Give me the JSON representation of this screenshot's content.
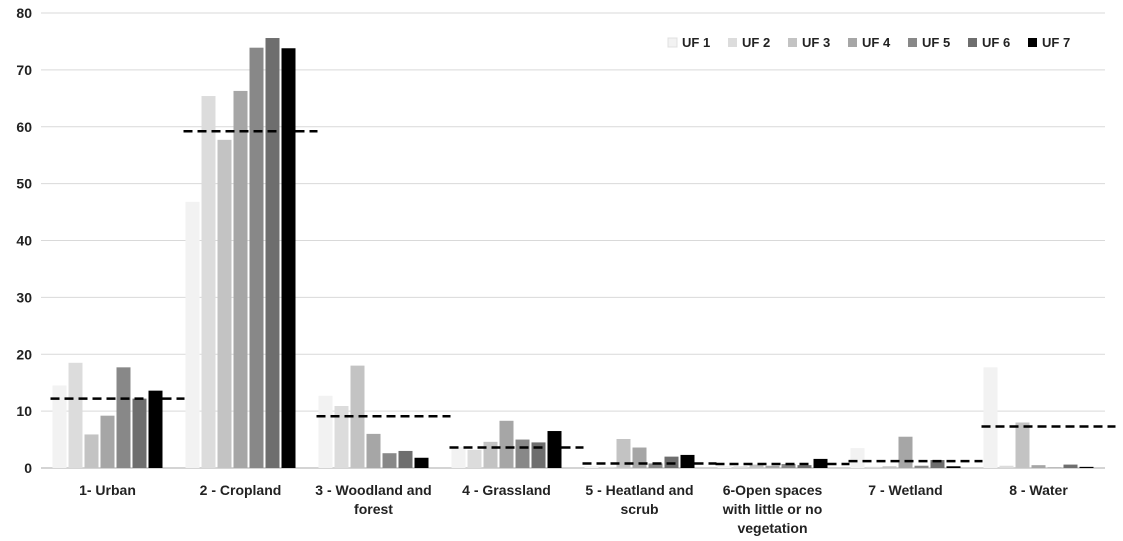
{
  "chart_data": {
    "type": "bar",
    "title": "",
    "xlabel": "",
    "ylabel": "",
    "ylim": [
      0,
      80
    ],
    "yticks": [
      0,
      10,
      20,
      30,
      40,
      50,
      60,
      70,
      80
    ],
    "grid": "horizontal",
    "legend_position": "top-right",
    "categories": [
      [
        "1- Urban"
      ],
      [
        "2 - Cropland"
      ],
      [
        "3 - Woodland and",
        "forest"
      ],
      [
        "4 - Grassland"
      ],
      [
        "5 - Heatland and",
        "scrub"
      ],
      [
        "6-Open spaces",
        "with little or no",
        "vegetation"
      ],
      [
        "7 - Wetland"
      ],
      [
        "8 - Water"
      ]
    ],
    "series": [
      {
        "name": "UF 1",
        "color": "#f2f2f2",
        "values": [
          14.5,
          46.8,
          12.7,
          3.7,
          0.3,
          0.4,
          3.5,
          17.7
        ]
      },
      {
        "name": "UF 2",
        "color": "#dcdcdc",
        "values": [
          18.5,
          65.4,
          10.9,
          3.2,
          0.2,
          0.3,
          0.2,
          0.4
        ]
      },
      {
        "name": "UF 3",
        "color": "#c3c3c3",
        "values": [
          5.9,
          57.7,
          18.0,
          4.6,
          5.1,
          0.6,
          0.3,
          8.0
        ]
      },
      {
        "name": "UF 4",
        "color": "#a6a6a6",
        "values": [
          9.2,
          66.3,
          6.0,
          8.3,
          3.6,
          0.4,
          5.5,
          0.5
        ]
      },
      {
        "name": "UF 5",
        "color": "#888888",
        "values": [
          17.7,
          73.9,
          2.6,
          5.0,
          0.8,
          0.7,
          0.4,
          0.1
        ]
      },
      {
        "name": "UF 6",
        "color": "#6e6e6e",
        "values": [
          12.2,
          75.6,
          3.0,
          4.5,
          2.0,
          0.5,
          1.4,
          0.6
        ]
      },
      {
        "name": "UF 7",
        "color": "#000000",
        "values": [
          13.6,
          73.8,
          1.8,
          6.5,
          2.3,
          1.6,
          0.3,
          0.2
        ]
      }
    ],
    "averages": [
      12.2,
      59.2,
      9.1,
      3.6,
      0.8,
      0.7,
      1.2,
      7.3
    ]
  }
}
